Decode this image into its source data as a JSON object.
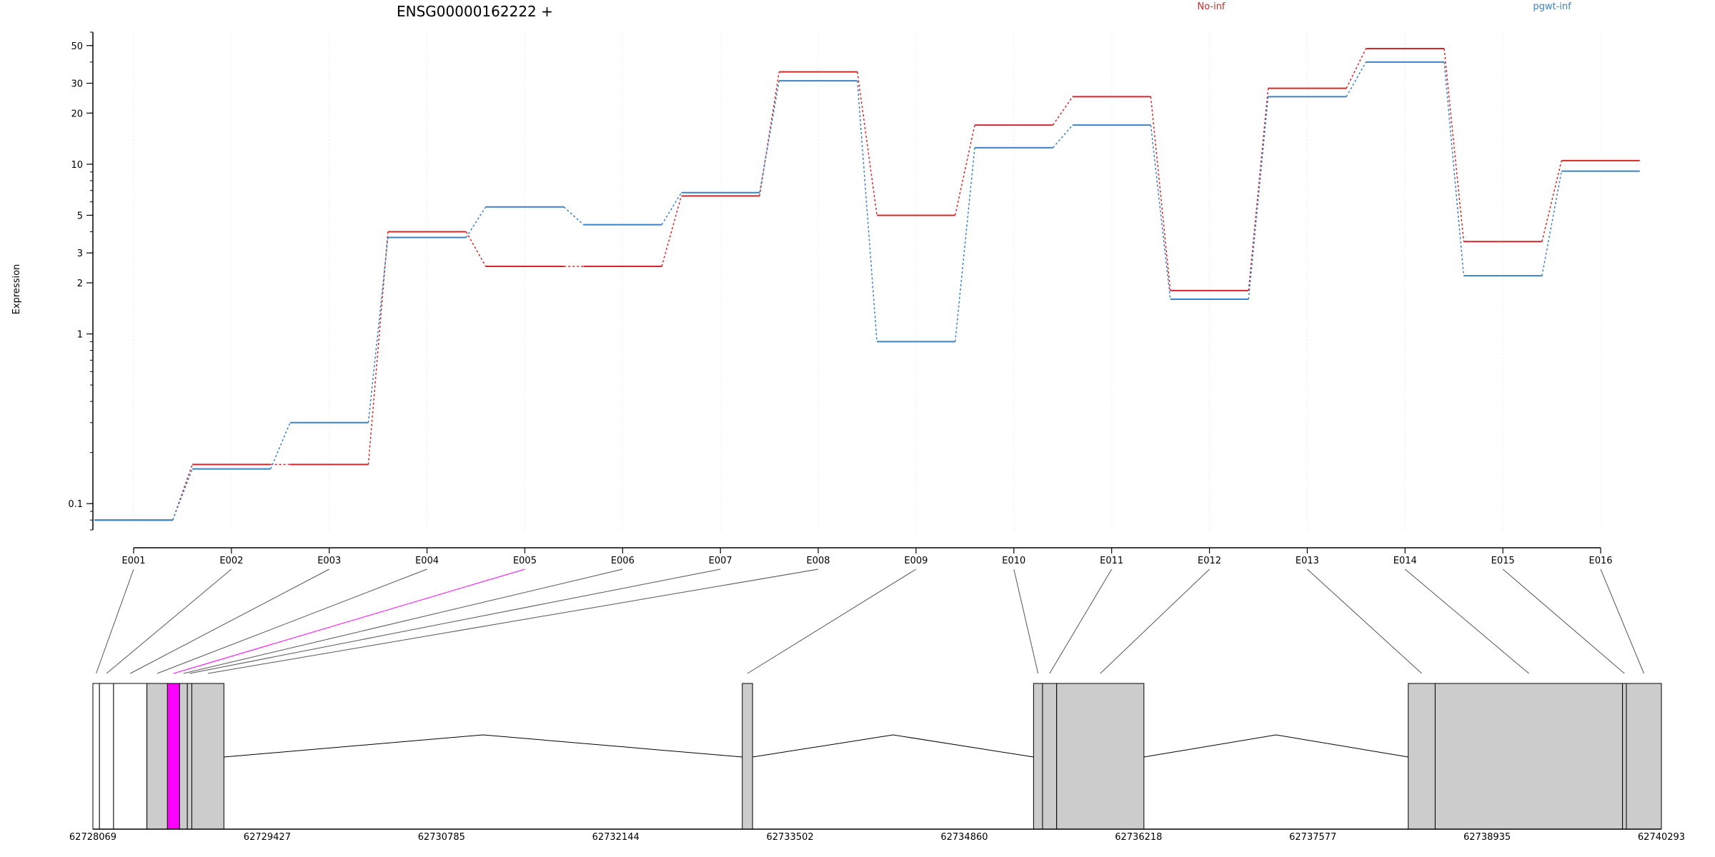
{
  "chart_data": {
    "type": "line",
    "title": "ENSG00000162222 +",
    "ylabel": "Expression",
    "xlabel": "",
    "y_scale": "log",
    "y_ticks": [
      0.1,
      1,
      2,
      3,
      5,
      10,
      20,
      30,
      50
    ],
    "y_tick_labels": [
      "0.1",
      "1",
      "2",
      "3",
      "5",
      "10",
      "20",
      "30",
      "50"
    ],
    "ylim": [
      0.07,
      60
    ],
    "categories": [
      "E001",
      "E002",
      "E003",
      "E004",
      "E005",
      "E006",
      "E007",
      "E008",
      "E009",
      "E010",
      "E011",
      "E012",
      "E013",
      "E014",
      "E015",
      "E016"
    ],
    "series": [
      {
        "name": "No-inf",
        "color": "#d62728",
        "values": [
          0.08,
          0.17,
          0.17,
          4.0,
          2.5,
          2.5,
          6.5,
          35,
          5.0,
          17,
          25,
          1.8,
          28,
          48,
          3.5,
          10.5
        ]
      },
      {
        "name": "pgwt-inf",
        "color": "#3b82c4",
        "values": [
          0.08,
          0.16,
          0.3,
          3.7,
          5.6,
          4.4,
          6.8,
          31,
          0.9,
          12.5,
          17,
          1.6,
          25,
          40,
          2.2,
          9.1
        ]
      }
    ],
    "legend": {
      "placement": "top"
    },
    "grid": "vertical",
    "highlight_exon": "E005",
    "highlight_color": "#ff00ff",
    "gene_model": {
      "coordinates": [
        "62728069",
        "62729427",
        "62730785",
        "62732144",
        "62733502",
        "62734860",
        "62736218",
        "62737577",
        "62738935",
        "62740293"
      ],
      "coord_start": 62728069,
      "coord_end": 62740293,
      "exons": [
        {
          "id": "E001",
          "start": 62728069,
          "end": 62728120
        },
        {
          "id": "E002",
          "start": 62728120,
          "end": 62728230
        },
        {
          "id": "E003",
          "start": 62728230,
          "end": 62728490
        },
        {
          "id": "E004",
          "start": 62728490,
          "end": 62728650
        },
        {
          "id": "E005",
          "start": 62728650,
          "end": 62728745
        },
        {
          "id": "E006",
          "start": 62728745,
          "end": 62728805
        },
        {
          "id": "E007",
          "start": 62728805,
          "end": 62728840
        },
        {
          "id": "E008",
          "start": 62728840,
          "end": 62729090
        },
        {
          "id": "E009",
          "start": 62733130,
          "end": 62733210
        },
        {
          "id": "E010",
          "start": 62735400,
          "end": 62735470
        },
        {
          "id": "E011",
          "start": 62735470,
          "end": 62735580
        },
        {
          "id": "E012",
          "start": 62735580,
          "end": 62736260
        },
        {
          "id": "E013",
          "start": 62738320,
          "end": 62738530
        },
        {
          "id": "E014",
          "start": 62738530,
          "end": 62739990
        },
        {
          "id": "E015",
          "start": 62739990,
          "end": 62740020
        },
        {
          "id": "E016",
          "start": 62740020,
          "end": 62740293
        }
      ],
      "unfilled_exons": [
        "E001",
        "E002",
        "E003"
      ],
      "introns": [
        {
          "start": 62729090,
          "end": 62733130
        },
        {
          "start": 62733210,
          "end": 62735400
        },
        {
          "start": 62736260,
          "end": 62738320
        }
      ]
    }
  }
}
